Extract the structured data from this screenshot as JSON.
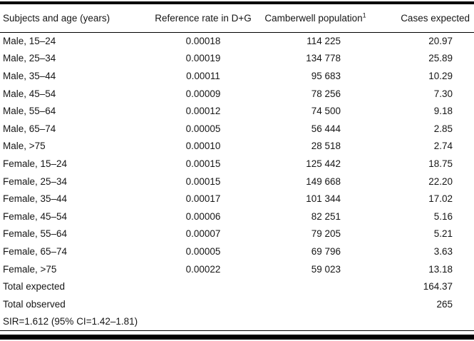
{
  "table": {
    "header": {
      "subjects": "Subjects and age (years)",
      "reference_rate": "Reference rate in D+G",
      "population": "Camberwell population",
      "population_superscript": "1",
      "cases_expected": "Cases expected"
    },
    "rows": [
      {
        "subject": "Male, 15–24",
        "rate": "0.00018",
        "population": "114 225",
        "expected": "20.97"
      },
      {
        "subject": "Male, 25–34",
        "rate": "0.00019",
        "population": "134 778",
        "expected": "25.89"
      },
      {
        "subject": "Male, 35–44",
        "rate": "0.00011",
        "population": "95 683",
        "expected": "10.29"
      },
      {
        "subject": "Male, 45–54",
        "rate": "0.00009",
        "population": "78 256",
        "expected": "7.30"
      },
      {
        "subject": "Male, 55–64",
        "rate": "0.00012",
        "population": "74 500",
        "expected": "9.18"
      },
      {
        "subject": "Male, 65–74",
        "rate": "0.00005",
        "population": "56 444",
        "expected": "2.85"
      },
      {
        "subject": "Male, >75",
        "rate": "0.00010",
        "population": "28 518",
        "expected": "2.74"
      },
      {
        "subject": "Female, 15–24",
        "rate": "0.00015",
        "population": "125 442",
        "expected": "18.75"
      },
      {
        "subject": "Female, 25–34",
        "rate": "0.00015",
        "population": "149 668",
        "expected": "22.20"
      },
      {
        "subject": "Female, 35–44",
        "rate": "0.00017",
        "population": "101 344",
        "expected": "17.02"
      },
      {
        "subject": "Female, 45–54",
        "rate": "0.00006",
        "population": "82 251",
        "expected": "5.16"
      },
      {
        "subject": "Female, 55–64",
        "rate": "0.00007",
        "population": "79 205",
        "expected": "5.21"
      },
      {
        "subject": "Female, 65–74",
        "rate": "0.00005",
        "population": "69 796",
        "expected": "3.63"
      },
      {
        "subject": "Female, >75",
        "rate": "0.00022",
        "population": "59 023",
        "expected": "13.18"
      }
    ],
    "total_rows": [
      {
        "label": "Total expected",
        "value": "164.37"
      },
      {
        "label": "Total observed",
        "value": "265"
      }
    ],
    "footer_note": "SIR=1.612 (95% CI=1.42–1.81)"
  }
}
